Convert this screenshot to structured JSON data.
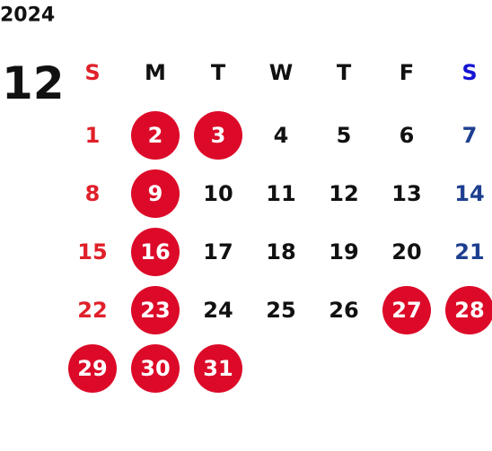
{
  "year": "2024",
  "month": "12",
  "weekdays": [
    "S",
    "M",
    "T",
    "W",
    "T",
    "F",
    "S"
  ],
  "weeks": [
    [
      {
        "day": 1,
        "holiday": false
      },
      {
        "day": 2,
        "holiday": true
      },
      {
        "day": 3,
        "holiday": true
      },
      {
        "day": 4,
        "holiday": false
      },
      {
        "day": 5,
        "holiday": false
      },
      {
        "day": 6,
        "holiday": false
      },
      {
        "day": 7,
        "holiday": false
      }
    ],
    [
      {
        "day": 8,
        "holiday": false
      },
      {
        "day": 9,
        "holiday": true
      },
      {
        "day": 10,
        "holiday": false
      },
      {
        "day": 11,
        "holiday": false
      },
      {
        "day": 12,
        "holiday": false
      },
      {
        "day": 13,
        "holiday": false
      },
      {
        "day": 14,
        "holiday": false
      }
    ],
    [
      {
        "day": 15,
        "holiday": false
      },
      {
        "day": 16,
        "holiday": true
      },
      {
        "day": 17,
        "holiday": false
      },
      {
        "day": 18,
        "holiday": false
      },
      {
        "day": 19,
        "holiday": false
      },
      {
        "day": 20,
        "holiday": false
      },
      {
        "day": 21,
        "holiday": false
      }
    ],
    [
      {
        "day": 22,
        "holiday": false
      },
      {
        "day": 23,
        "holiday": true
      },
      {
        "day": 24,
        "holiday": false
      },
      {
        "day": 25,
        "holiday": false
      },
      {
        "day": 26,
        "holiday": false
      },
      {
        "day": 27,
        "holiday": true
      },
      {
        "day": 28,
        "holiday": true
      }
    ],
    [
      {
        "day": 29,
        "holiday": true
      },
      {
        "day": 30,
        "holiday": true
      },
      {
        "day": 31,
        "holiday": true
      }
    ]
  ]
}
